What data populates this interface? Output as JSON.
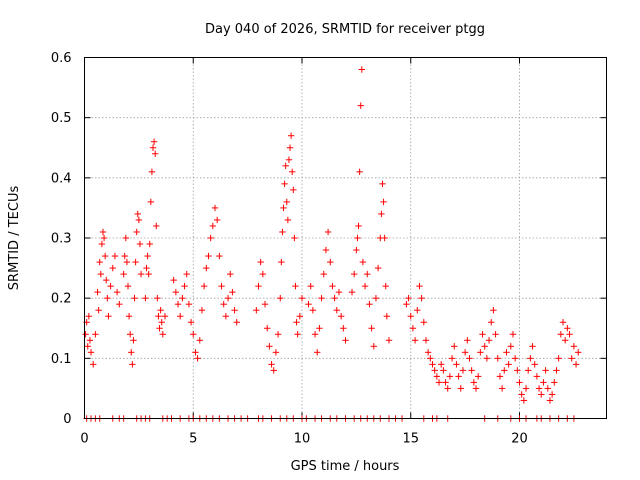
{
  "chart_data": {
    "type": "scatter",
    "title": "Day 040 of 2026, SRMTID for receiver ptgg",
    "xlabel": "GPS time / hours",
    "ylabel": "SRMTID / TECUs",
    "xlim": [
      0,
      24
    ],
    "ylim": [
      0,
      0.6
    ],
    "xticks": [
      0,
      5,
      10,
      15,
      20
    ],
    "yticks": [
      0,
      0.1,
      0.2,
      0.3,
      0.4,
      0.5,
      0.6
    ],
    "ytick_labels": [
      "0",
      "0.1",
      "0.2",
      "0.3",
      "0.4",
      "0.5",
      "0.6"
    ],
    "grid": true,
    "marker": "+",
    "color": "#ff0000",
    "series": [
      {
        "name": "SRMTID",
        "points": [
          [
            0.05,
            0.14
          ],
          [
            0.1,
            0.16
          ],
          [
            0.15,
            0.12
          ],
          [
            0.2,
            0.17
          ],
          [
            0.25,
            0.13
          ],
          [
            0.3,
            0.11
          ],
          [
            0.4,
            0.09
          ],
          [
            0.5,
            0.14
          ],
          [
            0.6,
            0.21
          ],
          [
            0.65,
            0.18
          ],
          [
            0.7,
            0.26
          ],
          [
            0.75,
            0.24
          ],
          [
            0.8,
            0.29
          ],
          [
            0.85,
            0.31
          ],
          [
            0.9,
            0.3
          ],
          [
            0.95,
            0.27
          ],
          [
            1.0,
            0.23
          ],
          [
            1.05,
            0.2
          ],
          [
            1.1,
            0.17
          ],
          [
            1.2,
            0.22
          ],
          [
            1.3,
            0.25
          ],
          [
            1.4,
            0.27
          ],
          [
            1.5,
            0.21
          ],
          [
            1.6,
            0.19
          ],
          [
            1.8,
            0.24
          ],
          [
            1.85,
            0.27
          ],
          [
            1.9,
            0.3
          ],
          [
            1.95,
            0.26
          ],
          [
            2.0,
            0.22
          ],
          [
            2.05,
            0.17
          ],
          [
            2.1,
            0.14
          ],
          [
            2.15,
            0.11
          ],
          [
            2.2,
            0.09
          ],
          [
            2.25,
            0.13
          ],
          [
            2.3,
            0.2
          ],
          [
            2.35,
            0.26
          ],
          [
            2.4,
            0.31
          ],
          [
            2.45,
            0.34
          ],
          [
            2.5,
            0.33
          ],
          [
            2.55,
            0.29
          ],
          [
            2.6,
            0.24
          ],
          [
            2.8,
            0.2
          ],
          [
            2.85,
            0.25
          ],
          [
            2.9,
            0.27
          ],
          [
            2.95,
            0.24
          ],
          [
            3.0,
            0.29
          ],
          [
            3.05,
            0.36
          ],
          [
            3.1,
            0.41
          ],
          [
            3.15,
            0.45
          ],
          [
            3.2,
            0.46
          ],
          [
            3.25,
            0.44
          ],
          [
            3.3,
            0.32
          ],
          [
            3.35,
            0.2
          ],
          [
            3.4,
            0.17
          ],
          [
            3.45,
            0.15
          ],
          [
            3.5,
            0.18
          ],
          [
            3.55,
            0.16
          ],
          [
            3.6,
            0.14
          ],
          [
            3.7,
            0.17
          ],
          [
            4.1,
            0.23
          ],
          [
            4.2,
            0.21
          ],
          [
            4.3,
            0.19
          ],
          [
            4.4,
            0.17
          ],
          [
            4.5,
            0.2
          ],
          [
            4.6,
            0.22
          ],
          [
            4.7,
            0.24
          ],
          [
            4.8,
            0.19
          ],
          [
            4.9,
            0.16
          ],
          [
            5.0,
            0.14
          ],
          [
            5.1,
            0.11
          ],
          [
            5.2,
            0.1
          ],
          [
            5.3,
            0.13
          ],
          [
            5.4,
            0.18
          ],
          [
            5.5,
            0.22
          ],
          [
            5.6,
            0.25
          ],
          [
            5.7,
            0.27
          ],
          [
            5.8,
            0.3
          ],
          [
            5.9,
            0.32
          ],
          [
            6.0,
            0.35
          ],
          [
            6.1,
            0.33
          ],
          [
            6.2,
            0.27
          ],
          [
            6.3,
            0.22
          ],
          [
            6.4,
            0.19
          ],
          [
            6.5,
            0.17
          ],
          [
            6.6,
            0.2
          ],
          [
            6.7,
            0.24
          ],
          [
            6.8,
            0.21
          ],
          [
            6.9,
            0.18
          ],
          [
            7.0,
            0.16
          ],
          [
            7.9,
            0.18
          ],
          [
            8.0,
            0.22
          ],
          [
            8.1,
            0.26
          ],
          [
            8.2,
            0.24
          ],
          [
            8.3,
            0.19
          ],
          [
            8.4,
            0.15
          ],
          [
            8.5,
            0.12
          ],
          [
            8.6,
            0.09
          ],
          [
            8.7,
            0.08
          ],
          [
            8.8,
            0.11
          ],
          [
            8.9,
            0.14
          ],
          [
            9.0,
            0.2
          ],
          [
            9.05,
            0.26
          ],
          [
            9.1,
            0.31
          ],
          [
            9.15,
            0.35
          ],
          [
            9.2,
            0.39
          ],
          [
            9.25,
            0.42
          ],
          [
            9.3,
            0.36
          ],
          [
            9.35,
            0.33
          ],
          [
            9.4,
            0.43
          ],
          [
            9.45,
            0.45
          ],
          [
            9.5,
            0.47
          ],
          [
            9.55,
            0.41
          ],
          [
            9.6,
            0.38
          ],
          [
            9.65,
            0.3
          ],
          [
            9.7,
            0.22
          ],
          [
            9.75,
            0.16
          ],
          [
            9.8,
            0.14
          ],
          [
            9.9,
            0.17
          ],
          [
            10.0,
            0.2
          ],
          [
            10.3,
            0.19
          ],
          [
            10.4,
            0.22
          ],
          [
            10.5,
            0.18
          ],
          [
            10.6,
            0.14
          ],
          [
            10.7,
            0.11
          ],
          [
            10.8,
            0.15
          ],
          [
            10.9,
            0.2
          ],
          [
            11.0,
            0.24
          ],
          [
            11.1,
            0.28
          ],
          [
            11.2,
            0.31
          ],
          [
            11.3,
            0.26
          ],
          [
            11.4,
            0.22
          ],
          [
            11.5,
            0.2
          ],
          [
            11.6,
            0.18
          ],
          [
            11.7,
            0.21
          ],
          [
            11.8,
            0.17
          ],
          [
            11.9,
            0.15
          ],
          [
            12.0,
            0.13
          ],
          [
            12.3,
            0.21
          ],
          [
            12.4,
            0.24
          ],
          [
            12.5,
            0.28
          ],
          [
            12.55,
            0.3
          ],
          [
            12.6,
            0.32
          ],
          [
            12.65,
            0.41
          ],
          [
            12.7,
            0.52
          ],
          [
            12.75,
            0.58
          ],
          [
            12.8,
            0.26
          ],
          [
            12.9,
            0.22
          ],
          [
            13.0,
            0.24
          ],
          [
            13.1,
            0.19
          ],
          [
            13.2,
            0.15
          ],
          [
            13.3,
            0.12
          ],
          [
            13.4,
            0.2
          ],
          [
            13.5,
            0.25
          ],
          [
            13.6,
            0.3
          ],
          [
            13.65,
            0.34
          ],
          [
            13.7,
            0.39
          ],
          [
            13.75,
            0.36
          ],
          [
            13.8,
            0.3
          ],
          [
            13.85,
            0.22
          ],
          [
            13.9,
            0.17
          ],
          [
            14.0,
            0.13
          ],
          [
            14.8,
            0.19
          ],
          [
            14.9,
            0.2
          ],
          [
            15.0,
            0.17
          ],
          [
            15.1,
            0.15
          ],
          [
            15.2,
            0.13
          ],
          [
            15.3,
            0.18
          ],
          [
            15.4,
            0.22
          ],
          [
            15.5,
            0.2
          ],
          [
            15.6,
            0.16
          ],
          [
            15.7,
            0.13
          ],
          [
            15.8,
            0.11
          ],
          [
            15.9,
            0.1
          ],
          [
            16.0,
            0.09
          ],
          [
            16.1,
            0.08
          ],
          [
            16.2,
            0.07
          ],
          [
            16.3,
            0.06
          ],
          [
            16.4,
            0.09
          ],
          [
            16.5,
            0.08
          ],
          [
            16.6,
            0.06
          ],
          [
            16.7,
            0.05
          ],
          [
            16.8,
            0.07
          ],
          [
            16.9,
            0.1
          ],
          [
            17.0,
            0.12
          ],
          [
            17.1,
            0.09
          ],
          [
            17.2,
            0.07
          ],
          [
            17.3,
            0.05
          ],
          [
            17.4,
            0.08
          ],
          [
            17.5,
            0.11
          ],
          [
            17.6,
            0.13
          ],
          [
            17.7,
            0.1
          ],
          [
            17.8,
            0.08
          ],
          [
            17.9,
            0.06
          ],
          [
            18.0,
            0.05
          ],
          [
            18.1,
            0.07
          ],
          [
            18.2,
            0.11
          ],
          [
            18.3,
            0.14
          ],
          [
            18.4,
            0.12
          ],
          [
            18.5,
            0.1
          ],
          [
            18.6,
            0.13
          ],
          [
            18.7,
            0.16
          ],
          [
            18.8,
            0.18
          ],
          [
            18.9,
            0.14
          ],
          [
            19.0,
            0.1
          ],
          [
            19.1,
            0.07
          ],
          [
            19.2,
            0.05
          ],
          [
            19.3,
            0.08
          ],
          [
            19.4,
            0.11
          ],
          [
            19.5,
            0.09
          ],
          [
            19.6,
            0.12
          ],
          [
            19.7,
            0.14
          ],
          [
            19.8,
            0.1
          ],
          [
            19.9,
            0.08
          ],
          [
            20.0,
            0.06
          ],
          [
            20.1,
            0.04
          ],
          [
            20.2,
            0.03
          ],
          [
            20.3,
            0.05
          ],
          [
            20.4,
            0.08
          ],
          [
            20.5,
            0.1
          ],
          [
            20.6,
            0.12
          ],
          [
            20.7,
            0.09
          ],
          [
            20.8,
            0.07
          ],
          [
            20.9,
            0.05
          ],
          [
            21.0,
            0.04
          ],
          [
            21.1,
            0.06
          ],
          [
            21.2,
            0.08
          ],
          [
            21.3,
            0.05
          ],
          [
            21.4,
            0.03
          ],
          [
            21.5,
            0.04
          ],
          [
            21.6,
            0.06
          ],
          [
            21.7,
            0.08
          ],
          [
            21.8,
            0.1
          ],
          [
            21.9,
            0.14
          ],
          [
            22.0,
            0.16
          ],
          [
            22.1,
            0.13
          ],
          [
            22.2,
            0.15
          ],
          [
            22.3,
            0.14
          ],
          [
            22.4,
            0.1
          ],
          [
            22.5,
            0.12
          ],
          [
            22.6,
            0.09
          ],
          [
            22.7,
            0.11
          ]
        ],
        "zero_points_x": [
          0.1,
          0.3,
          0.5,
          0.7,
          1.3,
          1.6,
          1.8,
          2.4,
          2.6,
          2.8,
          3.0,
          3.6,
          3.8,
          4.0,
          4.4,
          4.8,
          5.0,
          5.3,
          5.6,
          5.9,
          6.2,
          6.6,
          6.9,
          7.2,
          7.5,
          8.0,
          8.2,
          8.6,
          9.0,
          9.3,
          9.6,
          10.0,
          10.2,
          10.6,
          10.9,
          11.3,
          11.6,
          12.0,
          12.4,
          12.7,
          13.0,
          13.3,
          13.6,
          14.0,
          14.3,
          14.6,
          15.6,
          16.0,
          16.2,
          16.7,
          18.4,
          19.0,
          19.6,
          20.0,
          20.3,
          20.8,
          21.0,
          21.4,
          21.8,
          22.2,
          22.5
        ]
      }
    ]
  }
}
